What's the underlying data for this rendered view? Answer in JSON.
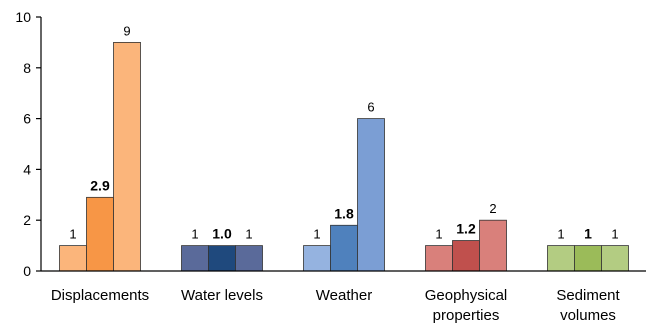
{
  "chart_data": {
    "type": "bar",
    "categories": [
      {
        "lines": [
          "Displacements"
        ]
      },
      {
        "lines": [
          "Water levels"
        ]
      },
      {
        "lines": [
          "Weather"
        ]
      },
      {
        "lines": [
          "Geophysical",
          "properties"
        ]
      },
      {
        "lines": [
          "Sediment",
          "volumes"
        ]
      }
    ],
    "groups": [
      {
        "values": [
          1,
          2.9,
          9
        ],
        "labels": [
          "1",
          "2.9",
          "9"
        ],
        "label_bold": [
          false,
          true,
          false
        ],
        "colors": [
          "#FBB57B",
          "#F79646",
          "#FBB57B"
        ]
      },
      {
        "values": [
          1,
          1.0,
          1
        ],
        "labels": [
          "1",
          "1.0",
          "1"
        ],
        "label_bold": [
          false,
          true,
          false
        ],
        "colors": [
          "#5A6A9A",
          "#1F497D",
          "#5A6A9A"
        ]
      },
      {
        "values": [
          1,
          1.8,
          6
        ],
        "labels": [
          "1",
          "1.8",
          "6"
        ],
        "label_bold": [
          false,
          true,
          false
        ],
        "colors": [
          "#95B3E0",
          "#4F81BD",
          "#7B9ED4"
        ]
      },
      {
        "values": [
          1,
          1.2,
          2
        ],
        "labels": [
          "1",
          "1.2",
          "2"
        ],
        "label_bold": [
          false,
          true,
          false
        ],
        "colors": [
          "#D9807B",
          "#C0504D",
          "#D9807B"
        ]
      },
      {
        "values": [
          1,
          1,
          1
        ],
        "labels": [
          "1",
          "1",
          "1"
        ],
        "label_bold": [
          false,
          true,
          false
        ],
        "colors": [
          "#B3CC82",
          "#9BBB59",
          "#B3CC82"
        ]
      }
    ],
    "yticks": [
      "0",
      "2",
      "4",
      "6",
      "8",
      "10"
    ],
    "ylim": [
      0,
      10
    ],
    "grid": false,
    "legend": "none",
    "title": "",
    "xlabel": "",
    "ylabel": ""
  }
}
